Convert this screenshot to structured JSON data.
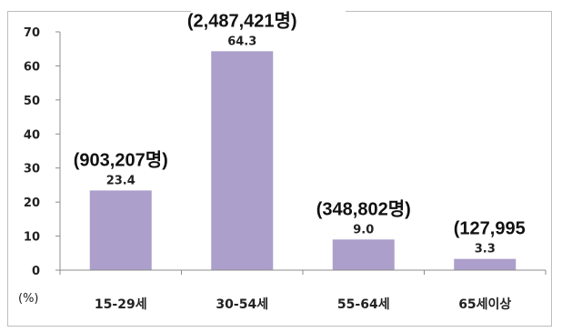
{
  "chart_data": {
    "type": "bar",
    "categories": [
      "15-29세",
      "30-54세",
      "55-64세",
      "65세이상"
    ],
    "values": [
      23.4,
      64.3,
      9.0,
      3.3
    ],
    "value_labels": [
      "23.4",
      "64.3",
      "9.0",
      "3.3"
    ],
    "count_labels": [
      "(903,207명)",
      "(2,487,421명)",
      "(348,802명)",
      "(127,995"
    ],
    "yticks": [
      "70",
      "60",
      "50",
      "40",
      "30",
      "20",
      "10",
      "0"
    ],
    "ylim": [
      0,
      70
    ],
    "ylabel": "(%)",
    "grid": false,
    "bar_color": "#ac9fcb"
  }
}
